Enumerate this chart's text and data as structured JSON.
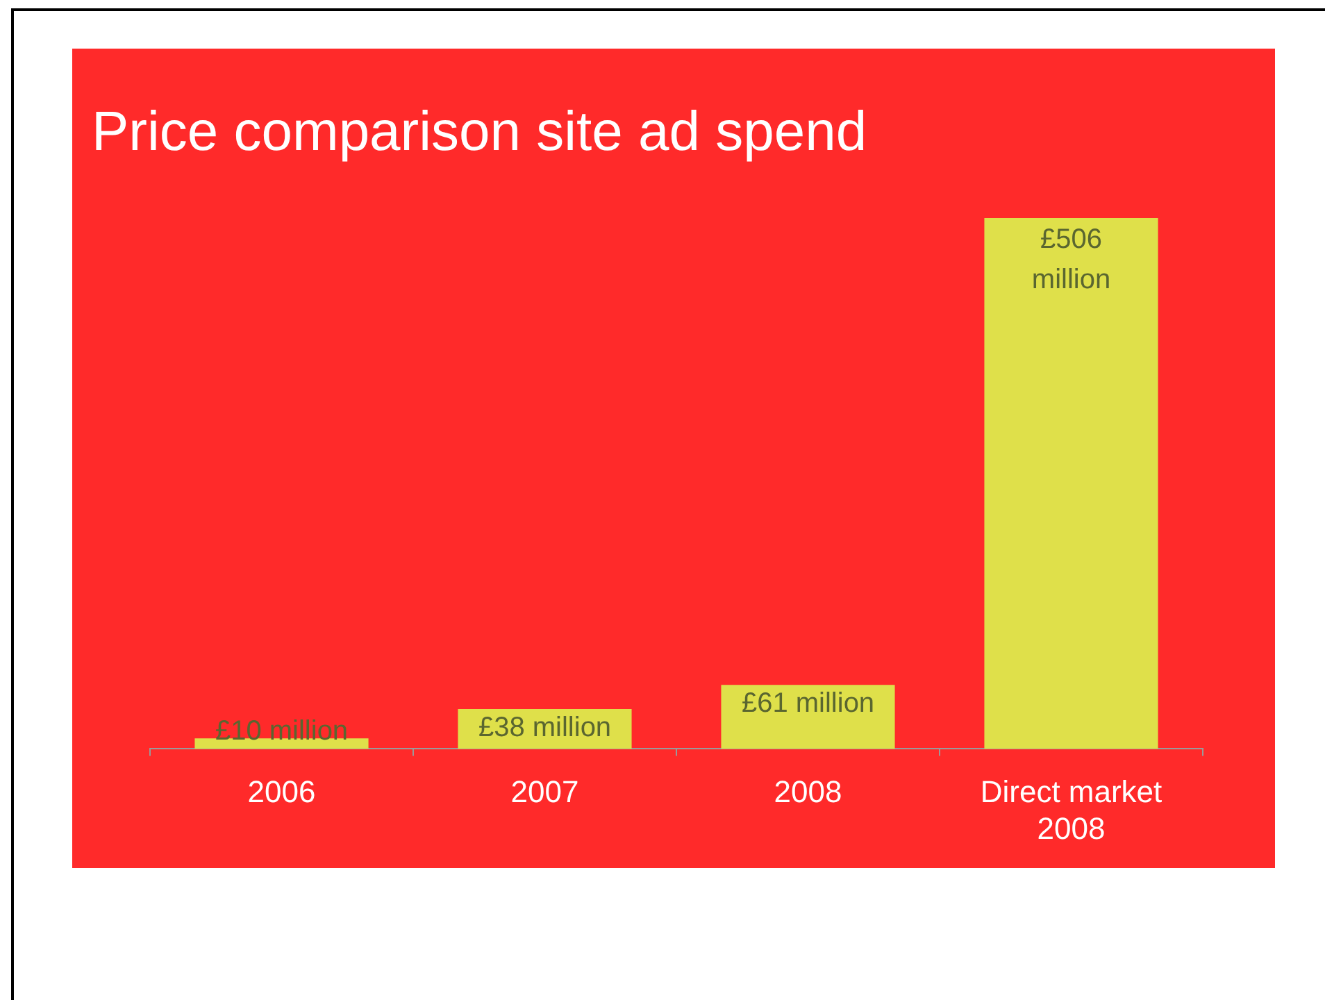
{
  "chart_data": {
    "type": "bar",
    "title": "Price comparison site ad spend",
    "categories": [
      "2006",
      "2007",
      "2008",
      "Direct market 2008"
    ],
    "values": [
      10,
      38,
      61,
      506
    ],
    "value_labels": [
      "£10 million",
      "£38 million",
      "£61 million",
      "£506 million"
    ],
    "color": "#dfe04a",
    "grid": false,
    "legend": false
  }
}
